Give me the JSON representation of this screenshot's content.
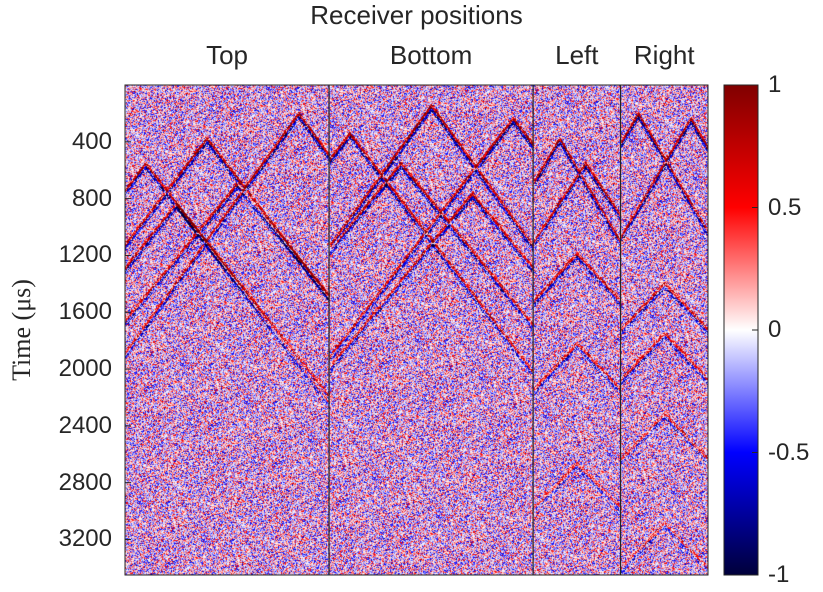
{
  "chart_data": {
    "type": "heatmap",
    "title": "Receiver positions",
    "ylabel": "Time (μs)",
    "ylim": [
      0,
      3450
    ],
    "y_reversed": true,
    "yticks": [
      "400",
      "800",
      "1200",
      "1600",
      "2000",
      "2400",
      "2800",
      "3200"
    ],
    "sections": [
      {
        "name": "Top",
        "fraction": 0.35
      },
      {
        "name": "Bottom",
        "fraction": 0.35
      },
      {
        "name": "Left",
        "fraction": 0.15
      },
      {
        "name": "Right",
        "fraction": 0.15
      }
    ],
    "colorbar": {
      "range": [
        -1,
        1
      ],
      "ticks": [
        "1",
        "0.5",
        "0",
        "-0.5",
        "-1"
      ],
      "colormap": [
        "#00003a",
        "#0000ff",
        "#ffffff",
        "#ff0000",
        "#800000"
      ]
    }
  }
}
